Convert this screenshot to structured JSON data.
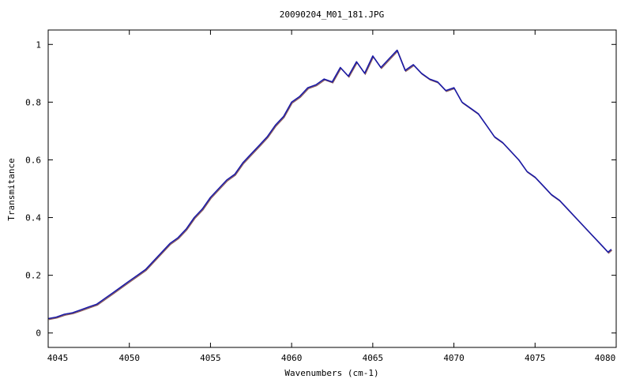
{
  "chart_data": {
    "type": "line",
    "title": "20090204_M01_181.JPG",
    "xlabel": "Wavenumbers (cm-1)",
    "ylabel": "Transmitance",
    "xlim": [
      4045,
      4080
    ],
    "ylim": [
      -0.05,
      1.05
    ],
    "x_ticks": [
      4045,
      4050,
      4055,
      4060,
      4065,
      4070,
      4075,
      4080
    ],
    "x_tick_labels": [
      "4045",
      "4050",
      "4055",
      "4060",
      "4065",
      "4070",
      "4075",
      "4080"
    ],
    "y_ticks": [
      0,
      0.2,
      0.4,
      0.6,
      0.8,
      1
    ],
    "y_tick_labels": [
      "0",
      "0.2",
      "0.4",
      "0.6",
      "0.8",
      "1"
    ],
    "grid": false,
    "legend": "none",
    "colors": {
      "main": "#1a1aa6",
      "shadow": "#8a5a5a"
    },
    "series": [
      {
        "x": [
          4045.0,
          4045.5,
          4046.0,
          4046.5,
          4047.0,
          4047.5,
          4048.0,
          4048.5,
          4049.0,
          4049.5,
          4050.0,
          4050.5,
          4051.0,
          4051.5,
          4052.0,
          4052.5,
          4053.0,
          4053.5,
          4054.0,
          4054.5,
          4055.0,
          4055.5,
          4056.0,
          4056.5,
          4057.0,
          4057.5,
          4058.0,
          4058.5,
          4059.0,
          4059.5,
          4060.0,
          4060.5,
          4061.0,
          4061.5,
          4062.0,
          4062.5,
          4063.0,
          4063.5,
          4064.0,
          4064.5,
          4065.0,
          4065.5,
          4066.0,
          4066.5,
          4067.0,
          4067.5,
          4068.0,
          4068.5,
          4069.0,
          4069.5,
          4070.0,
          4070.5,
          4071.0,
          4071.5,
          4072.0,
          4072.5,
          4073.0,
          4073.5,
          4074.0,
          4074.5,
          4075.0,
          4075.5,
          4076.0,
          4076.5,
          4077.0,
          4077.5,
          4078.0,
          4078.5,
          4079.0,
          4079.5,
          4079.7
        ],
        "y": [
          0.05,
          0.055,
          0.065,
          0.07,
          0.08,
          0.09,
          0.1,
          0.12,
          0.14,
          0.16,
          0.18,
          0.2,
          0.22,
          0.25,
          0.28,
          0.31,
          0.33,
          0.36,
          0.4,
          0.43,
          0.47,
          0.5,
          0.53,
          0.55,
          0.59,
          0.62,
          0.65,
          0.68,
          0.72,
          0.75,
          0.8,
          0.82,
          0.85,
          0.86,
          0.88,
          0.87,
          0.92,
          0.89,
          0.94,
          0.9,
          0.96,
          0.92,
          0.95,
          0.98,
          0.91,
          0.93,
          0.9,
          0.88,
          0.87,
          0.84,
          0.85,
          0.8,
          0.78,
          0.76,
          0.72,
          0.68,
          0.66,
          0.63,
          0.6,
          0.56,
          0.54,
          0.51,
          0.48,
          0.46,
          0.43,
          0.4,
          0.37,
          0.34,
          0.31,
          0.28,
          0.29
        ]
      }
    ]
  }
}
